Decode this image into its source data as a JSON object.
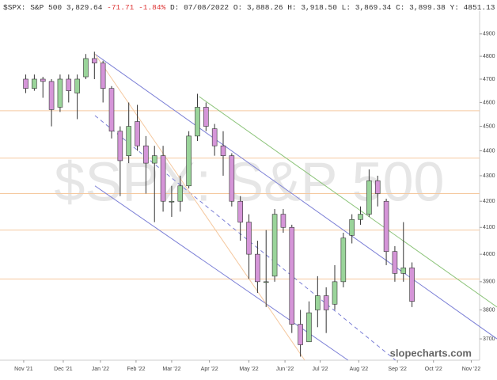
{
  "chart_data": {
    "type": "candlestick",
    "header": {
      "symbol": "$SPX: S&P 500",
      "last": "3,829.64",
      "change": "-71.71",
      "change_pct": "-1.84%",
      "fields": [
        "D: 07/08/2022",
        "O: 3,888.26",
        "H: 3,918.50",
        "L: 3,869.34",
        "C: 3,899.38",
        "Y:  4851.13"
      ]
    },
    "watermark": "$SPX: S&P 500",
    "credit": "slopecharts.com",
    "log_scale": true,
    "ylim": [
      3628,
      4928
    ],
    "yticks": [
      3700,
      3800,
      3900,
      4000,
      4100,
      4200,
      4300,
      4400,
      4500,
      4600,
      4700,
      4800,
      4900
    ],
    "xlim": [
      0,
      57.9
    ],
    "xticks": [
      {
        "value": 2.76,
        "label": "Nov '21"
      },
      {
        "value": 7.37,
        "label": "Dec '21"
      },
      {
        "value": 11.7,
        "label": "Jan '22"
      },
      {
        "value": 15.85,
        "label": "Feb '22"
      },
      {
        "value": 20,
        "label": "Mar '22"
      },
      {
        "value": 24.4,
        "label": "Apr '22"
      },
      {
        "value": 29,
        "label": "May '22"
      },
      {
        "value": 33.2,
        "label": "Jun '22"
      },
      {
        "value": 37.3,
        "label": "Jul '22"
      },
      {
        "value": 41.8,
        "label": "Aug '22"
      },
      {
        "value": 46.3,
        "label": "Sep '22"
      },
      {
        "value": 50.5,
        "label": "Oct '22"
      },
      {
        "value": 54.9,
        "label": "Nov '22"
      }
    ],
    "up_color": "#9ad49a",
    "down_color": "#d595d8",
    "outline_color": "#333333",
    "x": [
      3,
      4,
      5,
      6,
      7,
      8,
      9,
      10,
      11,
      12,
      13,
      14,
      15,
      16,
      17,
      18,
      19,
      20,
      21,
      22,
      23,
      24,
      25,
      26,
      27,
      28,
      29,
      30,
      31,
      32,
      33,
      34,
      35,
      36,
      37,
      38,
      39,
      40,
      41,
      42,
      43,
      44,
      45,
      46,
      47,
      48
    ],
    "open": [
      4700,
      4660,
      4700,
      4690,
      4580,
      4700,
      4640,
      4710,
      4790,
      4770,
      4660,
      4480,
      4380,
      4520,
      4420,
      4350,
      4380,
      4200,
      4200,
      4260,
      4460,
      4580,
      4490,
      4420,
      4380,
      4200,
      4120,
      4000,
      3900,
      3920,
      4150,
      4100,
      3750,
      3690,
      3800,
      3850,
      3820,
      3900,
      4070,
      4130,
      4150,
      4280,
      4200,
      4010,
      3930,
      3950
    ],
    "high": [
      4720,
      4720,
      4710,
      4700,
      4720,
      4720,
      4720,
      4810,
      4820,
      4780,
      4670,
      4500,
      4600,
      4590,
      4460,
      4420,
      4420,
      4260,
      4300,
      4480,
      4637,
      4600,
      4510,
      4480,
      4390,
      4220,
      4150,
      4050,
      4090,
      4170,
      4170,
      4110,
      3800,
      3830,
      3920,
      3880,
      3960,
      4080,
      4150,
      4180,
      4325,
      4300,
      4210,
      4030,
      4120,
      3970
    ],
    "low": [
      4640,
      4650,
      4620,
      4500,
      4560,
      4600,
      4530,
      4700,
      4700,
      4600,
      4450,
      4220,
      4350,
      4400,
      4230,
      4120,
      4160,
      4140,
      4160,
      4250,
      4440,
      4480,
      4380,
      4300,
      4180,
      4050,
      3910,
      3860,
      3810,
      3900,
      4080,
      3720,
      3640,
      3700,
      3740,
      3720,
      3800,
      3880,
      4040,
      4110,
      4140,
      4180,
      3960,
      3900,
      3900,
      3810
    ],
    "close": [
      4660,
      4700,
      4690,
      4570,
      4700,
      4650,
      4700,
      4790,
      4770,
      4660,
      4480,
      4360,
      4500,
      4420,
      4350,
      4380,
      4200,
      4200,
      4260,
      4460,
      4580,
      4500,
      4420,
      4380,
      4200,
      4120,
      4000,
      3900,
      3900,
      4150,
      4100,
      3750,
      3680,
      3790,
      3850,
      3800,
      3900,
      4060,
      4130,
      4150,
      4280,
      4230,
      4010,
      3930,
      3950,
      3830
    ],
    "hlines": [
      {
        "value": 4565,
        "color": "#f5c9a0"
      },
      {
        "value": 4370,
        "color": "#f5c9a0"
      },
      {
        "value": 4230,
        "color": "#f5c9a0"
      },
      {
        "value": 4090,
        "color": "#f5c9a0"
      },
      {
        "value": 3910,
        "color": "#f5c9a0"
      }
    ],
    "trendlines": [
      {
        "x": [
          11.06,
          57.9
        ],
        "y": [
          4810,
          3700
        ],
        "color": "#7b7fd6",
        "dashed": false
      },
      {
        "x": [
          11.06,
          40.55
        ],
        "y": [
          4260,
          3628
        ],
        "color": "#7b7fd6",
        "dashed": false
      },
      {
        "x": [
          11.06,
          46.08
        ],
        "y": [
          4545,
          3628
        ],
        "color": "#7b7fd6",
        "dashed": true
      },
      {
        "x": [
          23.2,
          57.9
        ],
        "y": [
          4625,
          3810
        ],
        "color": "#8cc47a",
        "dashed": false
      },
      {
        "x": [
          11.06,
          35.5
        ],
        "y": [
          4810,
          3628
        ],
        "color": "#f5c9a0",
        "dashed": false
      }
    ]
  }
}
